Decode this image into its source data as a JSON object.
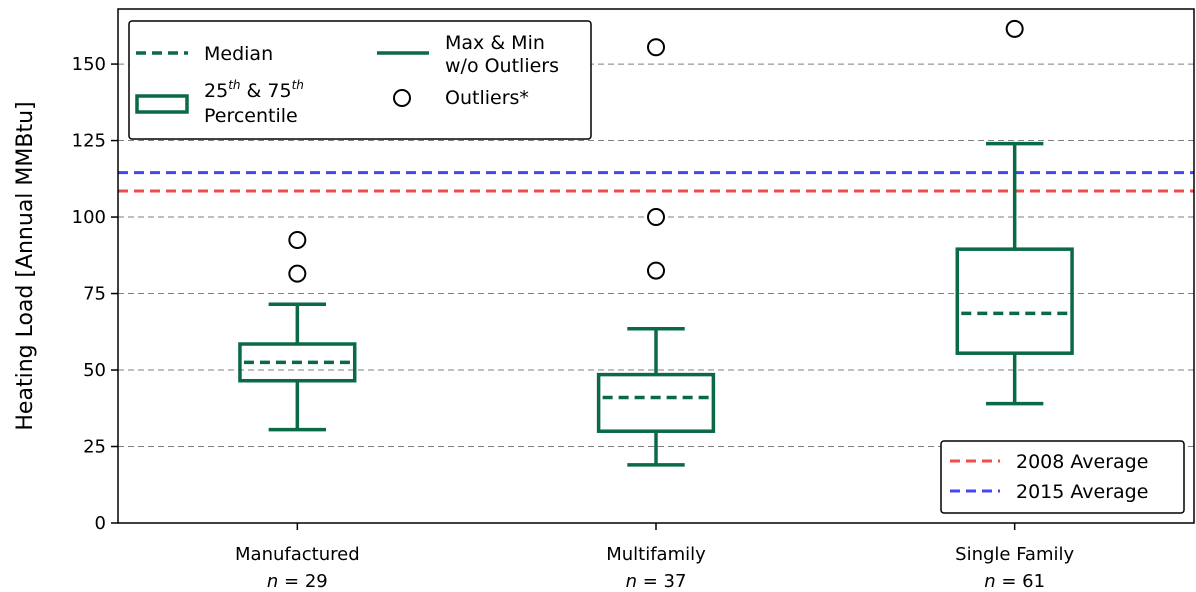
{
  "chart_data": {
    "type": "box",
    "ylabel": "Heating Load [Annual MMBtu]",
    "ylim": [
      0,
      168
    ],
    "yticks": [
      0,
      25,
      50,
      75,
      100,
      125,
      150
    ],
    "grid": "horizontal-dashed",
    "categories": [
      {
        "name": "Manufactured",
        "n_label": "n = 29"
      },
      {
        "name": "Multifamily",
        "n_label": "n = 37"
      },
      {
        "name": "Single Family",
        "n_label": "n = 61"
      }
    ],
    "boxes": [
      {
        "category": "Manufactured",
        "whisker_low": 30.5,
        "q1": 46.5,
        "median": 52.5,
        "q3": 58.5,
        "whisker_high": 71.5,
        "outliers": [
          81.5,
          92.5
        ]
      },
      {
        "category": "Multifamily",
        "whisker_low": 19,
        "q1": 30,
        "median": 41,
        "q3": 48.5,
        "whisker_high": 63.5,
        "outliers": [
          82.5,
          100,
          155.5
        ]
      },
      {
        "category": "Single Family",
        "whisker_low": 39,
        "q1": 55.5,
        "median": 68.5,
        "q3": 89.5,
        "whisker_high": 124,
        "outliers": [
          161.5
        ]
      }
    ],
    "reference_lines": [
      {
        "name": "2008 Average",
        "value": 108.5,
        "color": "#f24b4b"
      },
      {
        "name": "2015 Average",
        "value": 114.5,
        "color": "#4545f5"
      }
    ],
    "box_color": "#0a6a45",
    "legend_main": {
      "placement": "top-left",
      "median": "Median",
      "max_min_1": "Max & Min",
      "max_min_2": "w/o Outliers",
      "pct_25": "25",
      "pct_amp": " & 75",
      "pct_th": "th",
      "percentile": "Percentile",
      "outliers": "Outliers*"
    },
    "legend_ref_placement": "bottom-right"
  }
}
